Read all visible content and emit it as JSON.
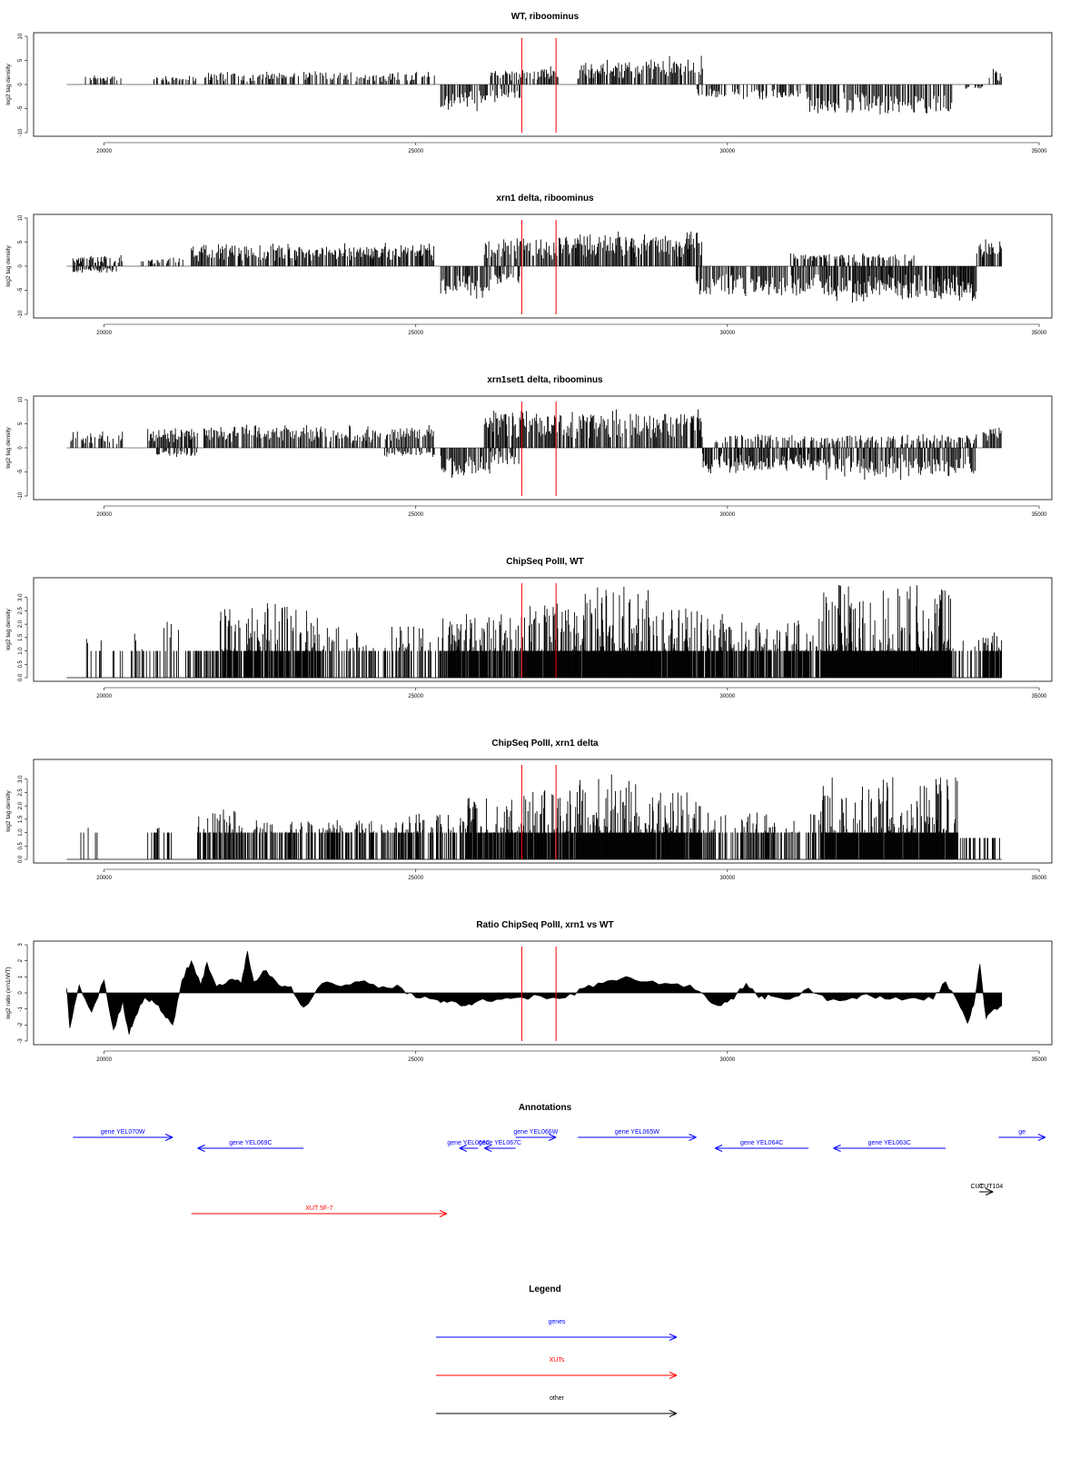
{
  "colors": {
    "genes": "#0000ff",
    "xuts": "#ff0000",
    "other": "#000000",
    "marker": "#ff0000",
    "signal": "#000000"
  },
  "x_axis": {
    "min": 19400,
    "max": 34400,
    "ticks": [
      20000,
      25000,
      30000,
      35000
    ],
    "tick_labels": [
      "20000",
      "25000",
      "30000",
      "35000"
    ]
  },
  "markers": [
    26700,
    27250
  ],
  "chart_data": [
    {
      "type": "bar",
      "title": "WT, riboominus",
      "ylabel": "log2 tag density",
      "ylim": [
        -10,
        10
      ],
      "yticks": [
        -10,
        -5,
        0,
        5,
        10
      ],
      "ytick_labels": [
        "-10",
        "-5",
        "0",
        "5",
        "10"
      ],
      "sense_regions": [
        [
          19700,
          20300,
          2
        ],
        [
          20800,
          21500,
          2
        ],
        [
          21600,
          25300,
          2.8
        ],
        [
          26200,
          27000,
          3.3
        ],
        [
          27000,
          27300,
          4.2
        ],
        [
          27600,
          28600,
          5.2
        ],
        [
          28600,
          29600,
          6.2
        ],
        [
          34200,
          34400,
          3.5
        ]
      ],
      "antisense_regions": [
        [
          25400,
          26000,
          -6
        ],
        [
          26000,
          26700,
          -4
        ],
        [
          29500,
          31300,
          -3.5
        ],
        [
          31300,
          33600,
          -6.5
        ],
        [
          33800,
          34100,
          -1
        ]
      ]
    },
    {
      "type": "bar",
      "title": "xrn1 delta, riboominus",
      "ylabel": "log2 tag density",
      "ylim": [
        -10,
        10
      ],
      "yticks": [
        -10,
        -5,
        0,
        5,
        10
      ],
      "ytick_labels": [
        "-10",
        "-5",
        "0",
        "5",
        "10"
      ],
      "sense_regions": [
        [
          19500,
          20300,
          2.5
        ],
        [
          20600,
          21300,
          2
        ],
        [
          21400,
          25300,
          5
        ],
        [
          26100,
          27300,
          6.5
        ],
        [
          27300,
          29600,
          7.5
        ],
        [
          31000,
          33000,
          3
        ],
        [
          34000,
          34400,
          6
        ]
      ],
      "antisense_regions": [
        [
          19500,
          20200,
          -1.5
        ],
        [
          25400,
          26200,
          -7
        ],
        [
          26200,
          26700,
          -4
        ],
        [
          29500,
          31500,
          -6.5
        ],
        [
          31500,
          34000,
          -8
        ]
      ]
    },
    {
      "type": "bar",
      "title": "xrn1set1 delta, riboominus",
      "ylabel": "log2 tag density",
      "ylim": [
        -10,
        10
      ],
      "yticks": [
        -10,
        -5,
        0,
        5,
        10
      ],
      "ytick_labels": [
        "-10",
        "-5",
        "0",
        "5",
        "10"
      ],
      "sense_regions": [
        [
          19400,
          20300,
          3.5
        ],
        [
          20700,
          21500,
          4.5
        ],
        [
          21600,
          25300,
          5
        ],
        [
          26100,
          27300,
          8.5
        ],
        [
          27300,
          29600,
          8.5
        ],
        [
          29800,
          34000,
          3
        ],
        [
          34100,
          34400,
          5
        ]
      ],
      "antisense_regions": [
        [
          20800,
          21500,
          -2
        ],
        [
          24500,
          25300,
          -2
        ],
        [
          25400,
          26200,
          -7
        ],
        [
          26200,
          26700,
          -4
        ],
        [
          29600,
          31500,
          -5.5
        ],
        [
          31500,
          34000,
          -7
        ]
      ]
    },
    {
      "type": "bar",
      "title": "ChipSeq PolII, WT",
      "ylabel": "log2 tag density",
      "ylim": [
        0,
        3.6
      ],
      "yticks": [
        0,
        0.5,
        1,
        1.5,
        2,
        2.5,
        3
      ],
      "ytick_labels": [
        "0.0",
        "0.5",
        "1.0",
        "1.5",
        "2.0",
        "2.5",
        "3.0"
      ],
      "regions": [
        [
          19700,
          20300,
          1.6,
          0.15
        ],
        [
          20400,
          21200,
          2.3,
          0.3
        ],
        [
          21300,
          21800,
          1,
          0.4
        ],
        [
          21800,
          23500,
          2.8,
          0.75
        ],
        [
          23500,
          25400,
          2,
          0.4
        ],
        [
          25400,
          26700,
          2.4,
          0.85
        ],
        [
          26700,
          27700,
          2.8,
          0.95
        ],
        [
          27700,
          28800,
          3.4,
          1
        ],
        [
          28800,
          30300,
          2.6,
          0.9
        ],
        [
          30300,
          31500,
          2.2,
          0.75
        ],
        [
          31500,
          33600,
          3.5,
          1
        ],
        [
          33600,
          34100,
          1.5,
          0.3
        ],
        [
          34100,
          34400,
          1.9,
          0.8
        ]
      ]
    },
    {
      "type": "bar",
      "title": "ChipSeq PolII, xrn1 delta",
      "ylabel": "log2 tag density",
      "ylim": [
        0,
        3.6
      ],
      "yticks": [
        0,
        0.5,
        1,
        1.5,
        2,
        2.5,
        3
      ],
      "ytick_labels": [
        "0.0",
        "0.5",
        "1.0",
        "1.5",
        "2.0",
        "2.5",
        "3.0"
      ],
      "regions": [
        [
          19600,
          20000,
          1.4,
          0.2
        ],
        [
          20700,
          21100,
          1.6,
          0.3
        ],
        [
          21500,
          22200,
          1.9,
          0.7
        ],
        [
          22200,
          24800,
          1.5,
          0.5
        ],
        [
          24800,
          25800,
          1.7,
          0.5
        ],
        [
          25800,
          26700,
          2.3,
          0.8
        ],
        [
          26700,
          27600,
          2.6,
          0.9
        ],
        [
          27600,
          28800,
          3.2,
          1
        ],
        [
          28800,
          29600,
          2.6,
          0.95
        ],
        [
          29600,
          31500,
          1.8,
          0.5
        ],
        [
          31500,
          33700,
          3.1,
          0.95
        ],
        [
          33700,
          34400,
          0.8,
          0.3
        ]
      ]
    },
    {
      "type": "area",
      "title": "Ratio ChipSeq PolII, xrn1 vs WT",
      "ylabel": "log2 ratio (xrn1/WT)",
      "ylim": [
        -3,
        3
      ],
      "yticks": [
        -3,
        -2,
        -1,
        0,
        1,
        2,
        3
      ],
      "ytick_labels": [
        "-3",
        "-2",
        "-1",
        "0",
        "1",
        "2",
        "3"
      ],
      "x": [
        19400,
        19450,
        19600,
        19800,
        20000,
        20150,
        20300,
        20400,
        20500,
        20650,
        20800,
        20950,
        21100,
        21250,
        21400,
        21550,
        21650,
        21800,
        22000,
        22200,
        22300,
        22400,
        22600,
        22800,
        23000,
        23200,
        23500,
        23800,
        24100,
        24400,
        24700,
        25000,
        25300,
        25500,
        25800,
        26000,
        26300,
        26600,
        27000,
        27400,
        27700,
        28000,
        28300,
        28600,
        29000,
        29400,
        29700,
        29900,
        30100,
        30300,
        30500,
        30700,
        31000,
        31300,
        31600,
        32000,
        32300,
        32600,
        33000,
        33300,
        33500,
        33700,
        33850,
        33950,
        34050,
        34150,
        34250,
        34400
      ],
      "y": [
        0.3,
        -2.2,
        0.5,
        -1.2,
        0.8,
        -2.3,
        -0.5,
        -2.6,
        -1.5,
        -0.3,
        -0.6,
        -1.3,
        -2.0,
        0.8,
        2.0,
        0.5,
        1.9,
        0.4,
        0.8,
        0.6,
        2.6,
        0.7,
        1.4,
        0.5,
        0.4,
        -0.9,
        0.6,
        0.4,
        0.7,
        0.3,
        0.5,
        -0.3,
        -0.4,
        -0.6,
        -0.8,
        -0.5,
        -0.4,
        -0.3,
        -0.2,
        -0.3,
        0.3,
        0.6,
        0.9,
        0.7,
        0.6,
        0.5,
        -0.5,
        -0.8,
        -0.4,
        0.6,
        -0.3,
        -0.2,
        -0.4,
        0.3,
        -0.5,
        -0.3,
        -0.2,
        -0.4,
        -0.3,
        -0.4,
        0.7,
        -0.6,
        -1.9,
        -0.8,
        1.8,
        -1.6,
        -1.1,
        -0.8
      ]
    }
  ],
  "annotations": {
    "title": "Annotations",
    "features": [
      {
        "label": "gene YEL070W",
        "start": 19500,
        "end": 21100,
        "strand": "+",
        "kind": "genes",
        "row": 0
      },
      {
        "label": "gene YEL069C",
        "start": 21500,
        "end": 23200,
        "strand": "-",
        "kind": "genes",
        "row": 1
      },
      {
        "label": "gene YEL068C",
        "start": 25700,
        "end": 26000,
        "strand": "-",
        "kind": "genes",
        "row": 1
      },
      {
        "label": "gene YEL067C",
        "start": 26100,
        "end": 26600,
        "strand": "-",
        "kind": "genes",
        "row": 1
      },
      {
        "label": "gene YEL066W",
        "start": 26600,
        "end": 27250,
        "strand": "+",
        "kind": "genes",
        "row": 0
      },
      {
        "label": "gene YEL065W",
        "start": 27600,
        "end": 29500,
        "strand": "+",
        "kind": "genes",
        "row": 0
      },
      {
        "label": "gene YEL064C",
        "start": 29800,
        "end": 31300,
        "strand": "-",
        "kind": "genes",
        "row": 1
      },
      {
        "label": "gene YEL063C",
        "start": 31700,
        "end": 33500,
        "strand": "-",
        "kind": "genes",
        "row": 1
      },
      {
        "label": "ge",
        "start": 34350,
        "end": 35100,
        "strand": "+",
        "kind": "genes",
        "row": 0
      },
      {
        "label": "XUT 5F-7",
        "start": 21400,
        "end": 25500,
        "strand": "+",
        "kind": "xuts",
        "row": 4
      },
      {
        "label": "CUT",
        "start": 33900,
        "end": 34000,
        "strand": "+",
        "kind": "other",
        "row": 3
      },
      {
        "label": "CUT104",
        "start": 34040,
        "end": 34260,
        "strand": "+",
        "kind": "other",
        "row": 3
      }
    ]
  },
  "legend": {
    "title": "Legend",
    "items": [
      {
        "label": "genes",
        "kind": "genes"
      },
      {
        "label": "XUTs",
        "kind": "xuts"
      },
      {
        "label": "other",
        "kind": "other"
      }
    ]
  }
}
